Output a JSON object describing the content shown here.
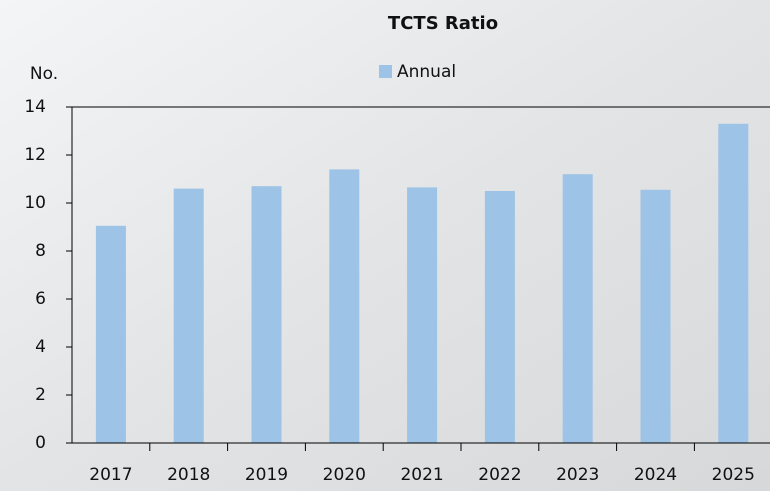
{
  "chart_data": {
    "type": "bar",
    "title": "TCTS Ratio",
    "y_label": "No.",
    "legend": "Annual",
    "categories": [
      "2017",
      "2018",
      "2019",
      "2020",
      "2021",
      "2022",
      "2023",
      "2024",
      "2025"
    ],
    "series": [
      {
        "name": "Annual",
        "color": "#9dc3e6",
        "values": [
          9.05,
          10.6,
          10.7,
          11.4,
          10.65,
          10.5,
          11.2,
          10.55,
          13.3
        ]
      }
    ],
    "ylim": [
      0,
      14
    ],
    "yticks": [
      0,
      2,
      4,
      6,
      8,
      10,
      12,
      14
    ],
    "grid": false
  }
}
